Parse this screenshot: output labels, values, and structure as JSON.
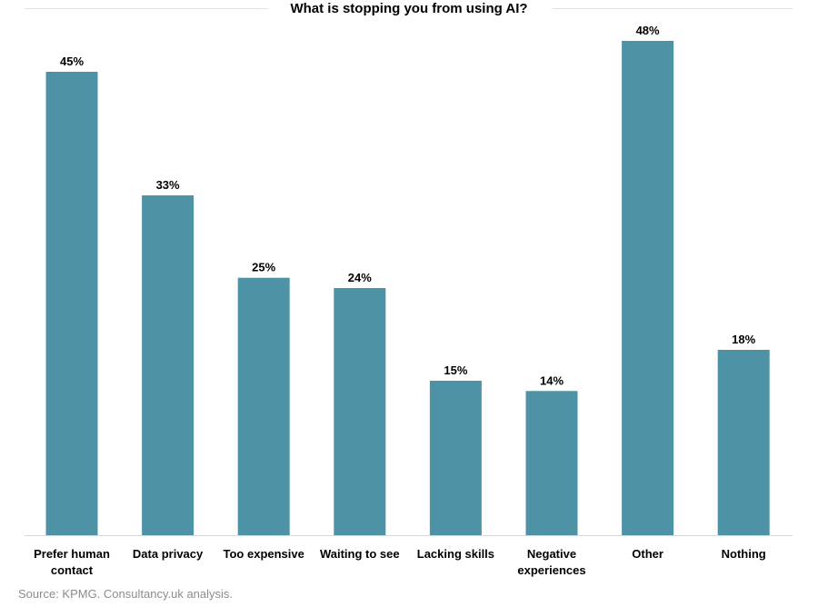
{
  "chart_data": {
    "type": "bar",
    "title": "What is stopping you from using AI?",
    "categories": [
      "Prefer human contact",
      "Data privacy",
      "Too expensive",
      "Waiting to see",
      "Lacking skills",
      "Negative experiences",
      "Other",
      "Nothing"
    ],
    "values": [
      45,
      33,
      25,
      24,
      15,
      14,
      48,
      18
    ],
    "value_labels": [
      "45%",
      "33%",
      "25%",
      "24%",
      "15%",
      "14%",
      "48%",
      "18%"
    ],
    "category_labels": [
      [
        "Prefer human",
        "contact"
      ],
      [
        "Data privacy"
      ],
      [
        "Too expensive"
      ],
      [
        "Waiting to see"
      ],
      [
        "Lacking skills"
      ],
      [
        "Negative",
        "experiences"
      ],
      [
        "Other"
      ],
      [
        "Nothing"
      ]
    ],
    "xlabel": "",
    "ylabel": "",
    "ylim": [
      0,
      48
    ],
    "grid": false,
    "legend": "none",
    "bar_color": "#4D93A5"
  },
  "source": "Source: KPMG. Consultancy.uk analysis."
}
